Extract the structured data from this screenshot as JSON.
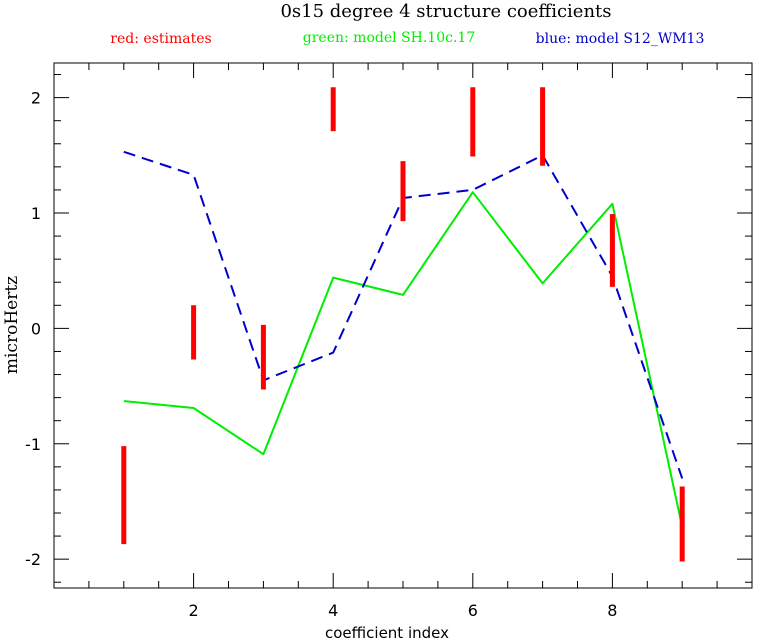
{
  "chart_data": {
    "type": "line",
    "title": "0s15 degree 4 structure coefficients",
    "xlabel": "coefficient index",
    "ylabel": "microHertz",
    "xlim": [
      0,
      10
    ],
    "ylim": [
      -2.25,
      2.3
    ],
    "x_ticks": [
      2,
      4,
      6,
      8
    ],
    "y_ticks": [
      -2,
      -1,
      0,
      1,
      2
    ],
    "x_tick_labels": [
      "2",
      "4",
      "6",
      "8"
    ],
    "y_tick_labels": [
      "-2",
      "-1",
      "0",
      "1",
      "2"
    ],
    "x_minor_step": 0.5,
    "y_minor_step": 0.2,
    "grid": false,
    "legend": [
      {
        "label": "red: estimates",
        "color": "#ff0000"
      },
      {
        "label": "green: model SH.10c.17",
        "color": "#00ee00"
      },
      {
        "label": "blue: model S12_WM13",
        "color": "#0000cc"
      }
    ],
    "estimates": {
      "color": "#ff0000",
      "x": [
        1,
        2,
        3,
        4,
        5,
        6,
        7,
        8,
        9
      ],
      "low": [
        -1.87,
        -0.27,
        -0.53,
        1.71,
        0.93,
        1.49,
        1.41,
        0.36,
        -2.02
      ],
      "high": [
        -1.02,
        0.2,
        0.03,
        2.09,
        1.45,
        2.09,
        2.09,
        0.99,
        -1.37
      ]
    },
    "series": [
      {
        "name": "green: model SH.10c.17",
        "color": "#00ee00",
        "style": "solid",
        "x": [
          1,
          2,
          3,
          4,
          5,
          6,
          7,
          8,
          9
        ],
        "y": [
          -0.63,
          -0.69,
          -1.09,
          0.44,
          0.29,
          1.18,
          0.39,
          1.08,
          -1.72
        ]
      },
      {
        "name": "blue: model S12_WM13",
        "color": "#0000cc",
        "style": "dashed",
        "x": [
          1,
          2,
          3,
          4,
          5,
          6,
          7,
          8,
          9
        ],
        "y": [
          1.53,
          1.33,
          -0.45,
          -0.21,
          1.13,
          1.2,
          1.5,
          0.45,
          -1.3
        ]
      }
    ]
  }
}
